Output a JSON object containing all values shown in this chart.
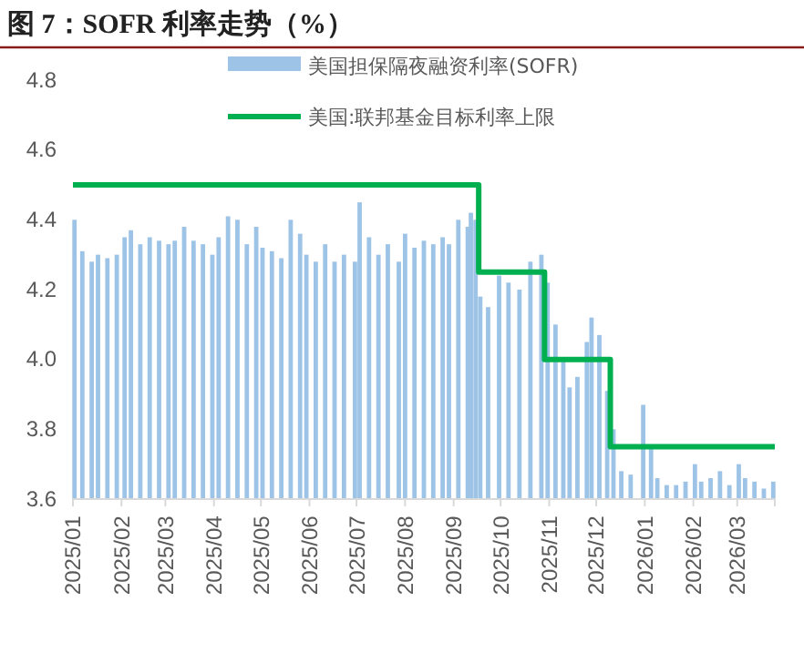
{
  "chart_data": {
    "type": "bar",
    "title": "图 7：SOFR 利率走势（%）",
    "xlim": [
      "2025-01-01",
      "2026-03-25"
    ],
    "xticks": [
      {
        "value": "2025-01-01",
        "label": "2025/01"
      },
      {
        "value": "2025-02-01",
        "label": "2025/02"
      },
      {
        "value": "2025-03-01",
        "label": "2025/03"
      },
      {
        "value": "2025-04-01",
        "label": "2025/04"
      },
      {
        "value": "2025-05-01",
        "label": "2025/05"
      },
      {
        "value": "2025-06-01",
        "label": "2025/06"
      },
      {
        "value": "2025-07-01",
        "label": "2025/07"
      },
      {
        "value": "2025-08-01",
        "label": "2025/08"
      },
      {
        "value": "2025-09-01",
        "label": "2025/09"
      },
      {
        "value": "2025-10-01",
        "label": "2025/10"
      },
      {
        "value": "2025-11-01",
        "label": "2025/11"
      },
      {
        "value": "2025-12-01",
        "label": "2025/12"
      },
      {
        "value": "2026-01-01",
        "label": "2026/01"
      },
      {
        "value": "2026-02-01",
        "label": "2026/02"
      },
      {
        "value": "2026-03-01",
        "label": "2026/03"
      }
    ],
    "ylim": [
      3.6,
      4.8
    ],
    "yticks": [
      3.6,
      3.8,
      {
        "value": 4,
        "label": "4.0"
      },
      4.2,
      4.4,
      4.6,
      4.8
    ],
    "legend": "top right",
    "series": [
      {
        "name": "美国担保隔夜融资利率(SOFR)",
        "color": "#9dc3e6",
        "x": [
          "2025-01-02",
          "2025-01-07",
          "2025-01-13",
          "2025-01-17",
          "2025-01-23",
          "2025-01-29",
          "2025-02-03",
          "2025-02-07",
          "2025-02-13",
          "2025-02-19",
          "2025-02-25",
          "2025-03-03",
          "2025-03-07",
          "2025-03-13",
          "2025-03-19",
          "2025-03-25",
          "2025-03-31",
          "2025-04-04",
          "2025-04-10",
          "2025-04-16",
          "2025-04-22",
          "2025-04-28",
          "2025-05-02",
          "2025-05-08",
          "2025-05-14",
          "2025-05-20",
          "2025-05-26",
          "2025-05-30",
          "2025-06-05",
          "2025-06-11",
          "2025-06-17",
          "2025-06-23",
          "2025-06-30",
          "2025-07-03",
          "2025-07-09",
          "2025-07-15",
          "2025-07-21",
          "2025-07-28",
          "2025-08-01",
          "2025-08-07",
          "2025-08-13",
          "2025-08-19",
          "2025-08-25",
          "2025-08-29",
          "2025-09-04",
          "2025-09-10",
          "2025-09-12",
          "2025-09-15",
          "2025-09-18",
          "2025-09-23",
          "2025-09-30",
          "2025-10-06",
          "2025-10-13",
          "2025-10-20",
          "2025-10-27",
          "2025-10-31",
          "2025-11-05",
          "2025-11-10",
          "2025-11-14",
          "2025-11-19",
          "2025-11-25",
          "2025-11-28",
          "2025-12-03",
          "2025-12-08",
          "2025-12-12",
          "2025-12-17",
          "2025-12-23",
          "2025-12-31",
          "2026-01-05",
          "2026-01-09",
          "2026-01-15",
          "2026-01-21",
          "2026-01-27",
          "2026-02-02",
          "2026-02-06",
          "2026-02-12",
          "2026-02-18",
          "2026-02-24",
          "2026-03-02",
          "2026-03-06",
          "2026-03-12",
          "2026-03-18",
          "2026-03-24"
        ],
        "values": [
          4.4,
          4.31,
          4.28,
          4.3,
          4.29,
          4.3,
          4.35,
          4.37,
          4.33,
          4.35,
          4.34,
          4.33,
          4.34,
          4.38,
          4.34,
          4.33,
          4.3,
          4.35,
          4.41,
          4.4,
          4.33,
          4.38,
          4.32,
          4.31,
          4.29,
          4.4,
          4.36,
          4.3,
          4.28,
          4.33,
          4.28,
          4.3,
          4.28,
          4.45,
          4.35,
          4.3,
          4.33,
          4.28,
          4.36,
          4.32,
          4.34,
          4.33,
          4.35,
          4.33,
          4.4,
          4.38,
          4.42,
          4.4,
          4.18,
          4.15,
          4.24,
          4.22,
          4.2,
          4.28,
          4.3,
          4.22,
          4.1,
          4.0,
          3.92,
          3.95,
          4.05,
          4.12,
          4.07,
          3.91,
          3.8,
          3.68,
          3.67,
          3.87,
          3.75,
          3.66,
          3.64,
          3.64,
          3.65,
          3.7,
          3.65,
          3.66,
          3.68,
          3.64,
          3.7,
          3.66,
          3.65,
          3.63,
          3.65
        ]
      },
      {
        "name": "美国:联邦基金目标利率上限",
        "type": "step",
        "color": "#00b050",
        "x": [
          "2025-01-01",
          "2025-09-17",
          "2025-10-29",
          "2025-12-10",
          "2026-03-25"
        ],
        "values": [
          4.5,
          4.25,
          4.0,
          3.75,
          3.75
        ]
      }
    ]
  }
}
